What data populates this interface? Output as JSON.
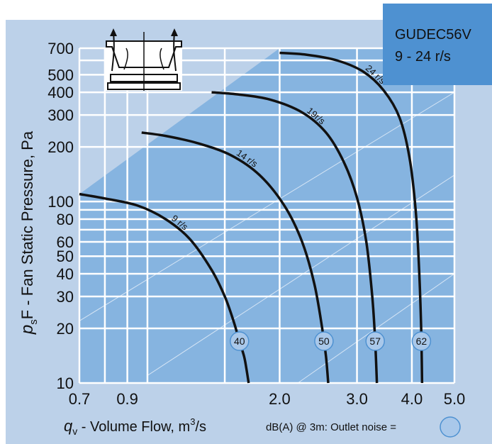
{
  "chart_data": {
    "type": "line",
    "title": "GUDEC56V",
    "subtitle": "9 - 24 r/s",
    "x_scale": "log",
    "y_scale": "log",
    "xlim": [
      0.7,
      5.0
    ],
    "ylim": [
      10,
      700
    ],
    "x_tick_labels": [
      "0.7",
      "0.9",
      "2.0",
      "3.0",
      "4.0",
      "5.0"
    ],
    "x_ticks": [
      0.7,
      0.9,
      2.0,
      3.0,
      4.0,
      5.0
    ],
    "y_tick_labels": [
      "10",
      "20",
      "30",
      "40",
      "50",
      "60",
      "80",
      "100",
      "200",
      "300",
      "400",
      "500",
      "700"
    ],
    "y_ticks": [
      10,
      20,
      30,
      40,
      50,
      60,
      80,
      100,
      200,
      300,
      400,
      500,
      700
    ],
    "y_grid_extra": [
      70,
      90,
      600
    ],
    "x_grid_extra": [
      0.8,
      1.0,
      1.5
    ],
    "grid": true,
    "xlabel": {
      "symbol": "q",
      "sub": "v",
      "text": " - Volume Flow, m",
      "sup": "3",
      "unit": "/s"
    },
    "ylabel": {
      "symbol": "p",
      "sub": "s",
      "text": "F - Fan Static Pressure, Pa"
    },
    "noise_legend": {
      "text": "dB(A) @ 3m:  Outlet noise  ="
    },
    "series": [
      {
        "name": "9 r/s",
        "noise": "40",
        "x": [
          0.7,
          0.8,
          0.95,
          1.1,
          1.25,
          1.4,
          1.5,
          1.57,
          1.62,
          1.66,
          1.68,
          1.7
        ],
        "y": [
          110,
          104,
          95,
          80,
          62,
          42,
          30,
          22,
          17,
          14,
          12,
          10
        ]
      },
      {
        "name": "14 r/s",
        "noise": "50",
        "x": [
          0.97,
          1.1,
          1.3,
          1.55,
          1.8,
          2.05,
          2.25,
          2.4,
          2.5,
          2.55,
          2.58
        ],
        "y": [
          240,
          230,
          210,
          180,
          140,
          95,
          60,
          35,
          20,
          14,
          10
        ]
      },
      {
        "name": "19r/s",
        "noise": "57",
        "x": [
          1.4,
          1.6,
          1.9,
          2.25,
          2.55,
          2.8,
          3.0,
          3.15,
          3.25,
          3.3,
          3.33
        ],
        "y": [
          400,
          390,
          365,
          310,
          240,
          165,
          105,
          60,
          30,
          17,
          10
        ]
      },
      {
        "name": "24 r/s",
        "noise": "62",
        "x": [
          2.0,
          2.3,
          2.7,
          3.1,
          3.45,
          3.75,
          3.95,
          4.08,
          4.15,
          4.2,
          4.22
        ],
        "y": [
          660,
          645,
          600,
          520,
          410,
          290,
          175,
          90,
          45,
          20,
          10
        ]
      }
    ]
  }
}
